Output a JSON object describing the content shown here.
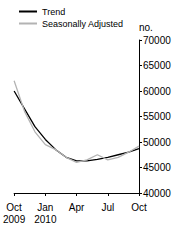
{
  "chart_data": {
    "type": "line",
    "ylabel": "no.",
    "categories": [
      "Oct\n2009",
      null,
      null,
      "Jan\n2010",
      null,
      null,
      "Apr",
      null,
      null,
      "Jul",
      null,
      null,
      "Oct"
    ],
    "series": [
      {
        "name": "Trend",
        "color": "#000000",
        "values": [
          60000,
          56500,
          53000,
          50500,
          48500,
          47000,
          46300,
          46300,
          46600,
          47000,
          47500,
          48000,
          48700
        ]
      },
      {
        "name": "Seasonally Adjusted",
        "color": "#b3b3b3",
        "values": [
          62000,
          56000,
          52000,
          49500,
          48500,
          47000,
          46000,
          46500,
          47500,
          46500,
          47000,
          48000,
          49200
        ]
      }
    ],
    "ylim": [
      40000,
      70000
    ],
    "yticks": [
      40000,
      45000,
      50000,
      55000,
      60000,
      65000,
      70000
    ],
    "grid": false,
    "legend": "top-left"
  }
}
